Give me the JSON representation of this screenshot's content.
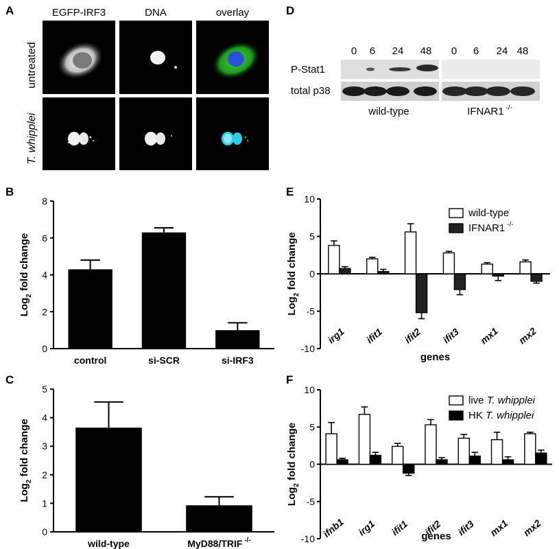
{
  "panelA": {
    "letter": "A",
    "columns": [
      "EGFP-IRF3",
      "DNA",
      "overlay"
    ],
    "rows": [
      "untreated",
      "T. whipplei"
    ]
  },
  "panelD": {
    "letter": "D",
    "timepoints": [
      "0",
      "6",
      "24",
      "48",
      "0",
      "6",
      "24",
      "48"
    ],
    "row1": "P-Stat1",
    "row2": "total p38",
    "group1": "wild-type",
    "group2_base": "IFNAR1",
    "group2_sup": "-/-"
  },
  "panelB": {
    "letter": "B",
    "ylabel_main": "Log",
    "ylabel_sub": "2",
    "ylabel_rest": " fold change"
  },
  "panelC": {
    "letter": "C",
    "ylabel_main": "Log",
    "ylabel_sub": "2",
    "ylabel_rest": " fold change",
    "label2_sup": "-/-"
  },
  "panelE": {
    "letter": "E",
    "ylabel_main": "Log",
    "ylabel_sub": "2",
    "ylabel_rest": " fold change",
    "legend1": "wild-type",
    "legend2_base": "IFNAR1",
    "legend2_sup": "-/-"
  },
  "panelF": {
    "letter": "F",
    "ylabel_main": "Log",
    "ylabel_sub": "2",
    "ylabel_rest": " fold change",
    "legend1_a": "live ",
    "legend1_b": "T. whipplei",
    "legend2_a": "HK ",
    "legend2_b": "T. whipplei"
  },
  "chart_data": [
    {
      "id": "B",
      "type": "bar",
      "categories": [
        "control",
        "si-SCR",
        "si-IRF3"
      ],
      "values": [
        4.3,
        6.3,
        1.0
      ],
      "errors": [
        0.5,
        0.25,
        0.4
      ],
      "xlabel": "",
      "ylabel": "Log2 fold change",
      "ylim": [
        0,
        8
      ],
      "yticks": [
        "0",
        "2",
        "4",
        "6",
        "8"
      ],
      "colors": [
        "#000000"
      ]
    },
    {
      "id": "C",
      "type": "bar",
      "categories": [
        "wild-type",
        "MyD88/TRIF"
      ],
      "values": [
        3.65,
        0.93
      ],
      "errors": [
        0.9,
        0.3
      ],
      "xlabel": "",
      "ylabel": "Log2 fold change",
      "ylim": [
        0,
        5
      ],
      "yticks": [
        "0",
        "1",
        "2",
        "3",
        "4",
        "5"
      ],
      "colors": [
        "#000000"
      ]
    },
    {
      "id": "E",
      "type": "bar",
      "categories": [
        "irg1",
        "ifit1",
        "ifit2",
        "ifit3",
        "mx1",
        "mx2"
      ],
      "series": [
        {
          "name": "wild-type",
          "values": [
            3.8,
            2.0,
            5.6,
            2.8,
            1.3,
            1.6
          ],
          "errors": [
            0.6,
            0.2,
            1.1,
            0.2,
            0.2,
            0.25
          ],
          "color": "#ffffff"
        },
        {
          "name": "IFNAR1 -/-",
          "values": [
            0.7,
            0.3,
            -5.2,
            -2.1,
            -0.3,
            -1.0
          ],
          "errors": [
            0.25,
            0.3,
            0.8,
            0.7,
            0.6,
            0.25
          ],
          "color": "#222222"
        }
      ],
      "xlabel": "genes",
      "ylabel": "Log2 fold change",
      "ylim": [
        -10,
        10
      ],
      "yticks": [
        "-10",
        "-5",
        "0",
        "5",
        "10"
      ]
    },
    {
      "id": "F",
      "type": "bar",
      "categories": [
        "ifnb1",
        "irg1",
        "ifit1",
        "ifit2",
        "ifit3",
        "mx1",
        "mx2"
      ],
      "series": [
        {
          "name": "live T. whipplei",
          "values": [
            4.1,
            6.7,
            2.4,
            5.3,
            3.5,
            3.3,
            4.1
          ],
          "errors": [
            1.5,
            1.0,
            0.4,
            0.7,
            0.5,
            1.0,
            0.2
          ],
          "color": "#ffffff"
        },
        {
          "name": "HK T. whipplei",
          "values": [
            0.6,
            1.2,
            -1.2,
            0.6,
            1.1,
            0.6,
            1.5
          ],
          "errors": [
            0.2,
            0.4,
            0.3,
            0.3,
            0.5,
            0.4,
            0.4
          ],
          "color": "#000000"
        }
      ],
      "xlabel": "genes",
      "ylabel": "Log2 fold change",
      "ylim": [
        -10,
        10
      ],
      "yticks": [
        "-10",
        "-5",
        "0",
        "5",
        "10"
      ]
    }
  ]
}
